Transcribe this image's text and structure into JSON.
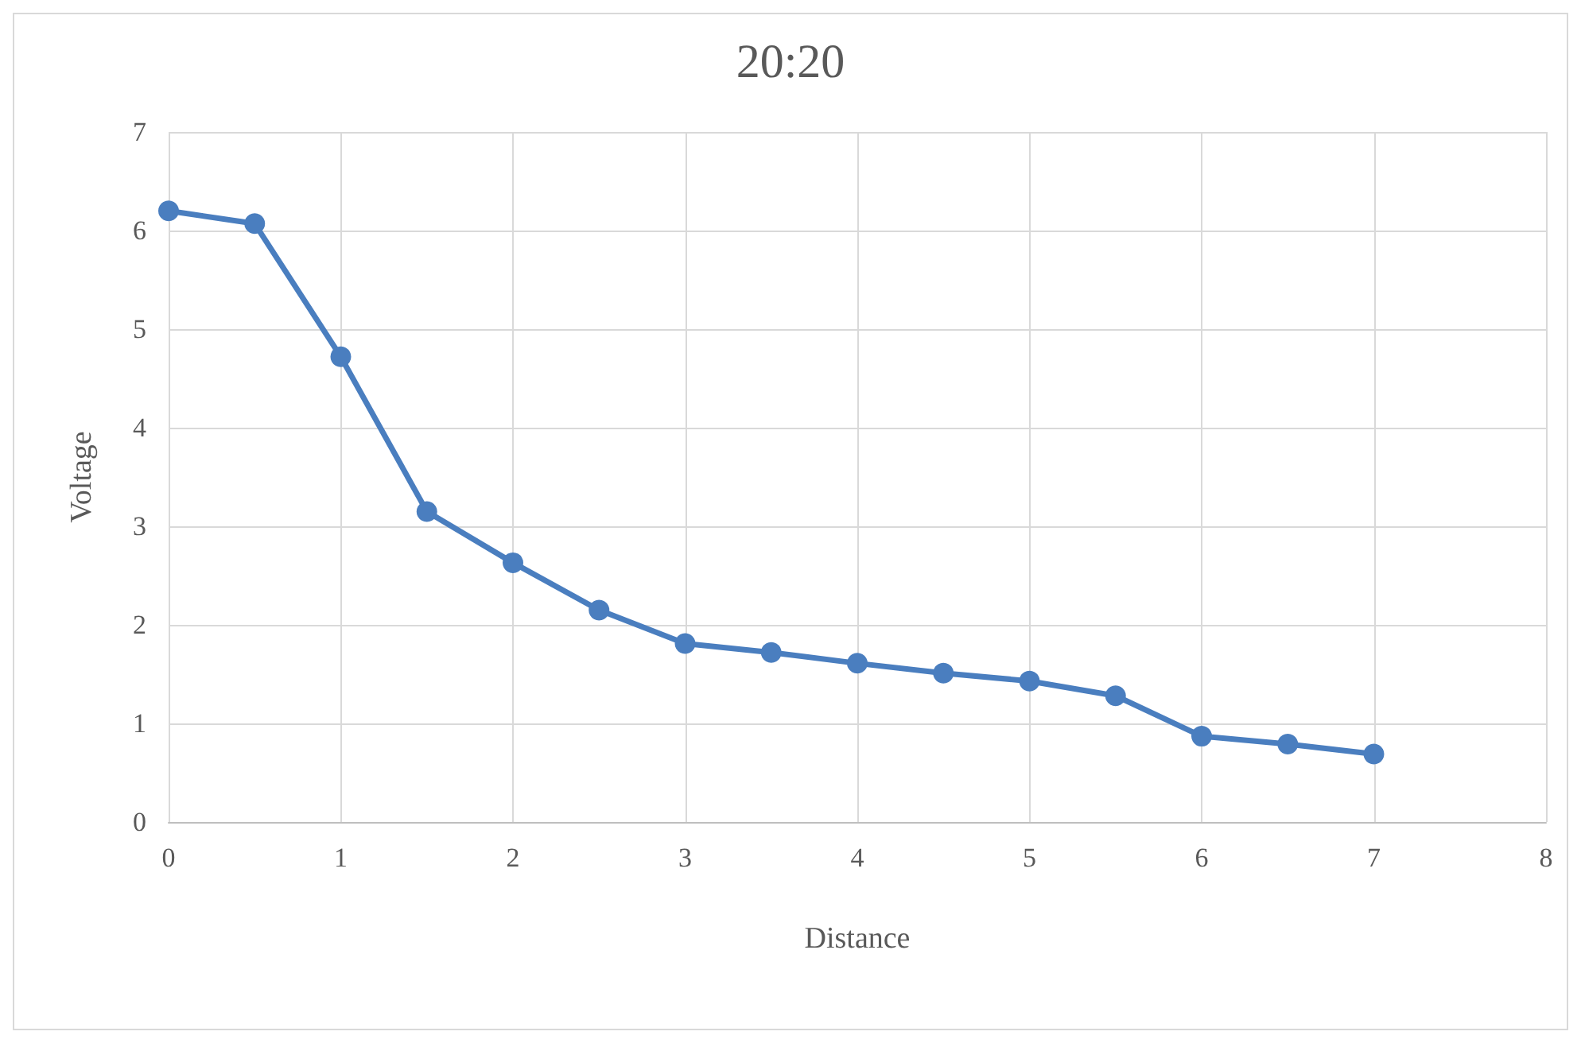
{
  "chart_data": {
    "type": "line",
    "title": "20:20",
    "xlabel": "Distance",
    "ylabel": "Voltage",
    "x": [
      0,
      0.5,
      1,
      1.5,
      2,
      2.5,
      3,
      3.5,
      4,
      4.5,
      5,
      5.5,
      6,
      6.5,
      7
    ],
    "series": [
      {
        "color": "#4a7ebf",
        "values": [
          6.2,
          6.07,
          4.72,
          3.15,
          2.63,
          2.15,
          1.81,
          1.72,
          1.61,
          1.51,
          1.43,
          1.28,
          0.87,
          0.79,
          0.69
        ]
      }
    ],
    "xlim": [
      0,
      8
    ],
    "xticks": [
      0,
      1,
      2,
      3,
      4,
      5,
      6,
      7,
      8
    ],
    "ylim": [
      0,
      7
    ],
    "yticks": [
      0,
      1,
      2,
      3,
      4,
      5,
      6,
      7
    ],
    "grid": true,
    "marker": "circle",
    "line_style": "solid"
  }
}
